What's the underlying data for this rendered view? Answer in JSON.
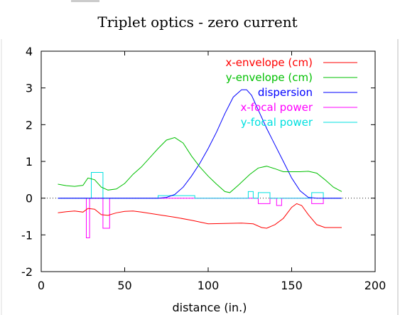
{
  "chart_data": {
    "type": "line",
    "title": "Triplet optics - zero current",
    "xlabel": "distance (in.)",
    "ylabel": "",
    "xlim": [
      0,
      200
    ],
    "ylim": [
      -2,
      4
    ],
    "x_ticks": [
      "0",
      "50",
      "100",
      "150",
      "200"
    ],
    "y_ticks": [
      "-2",
      "-1",
      "0",
      "1",
      "2",
      "3",
      "4"
    ],
    "zero_line": true,
    "legend_position": "top-right",
    "series": [
      {
        "name": "x-envelope (cm)",
        "color": "#ff0000",
        "points": [
          [
            10,
            -0.4
          ],
          [
            15,
            -0.37
          ],
          [
            20,
            -0.35
          ],
          [
            25,
            -0.38
          ],
          [
            28,
            -0.28
          ],
          [
            32,
            -0.3
          ],
          [
            36,
            -0.45
          ],
          [
            40,
            -0.47
          ],
          [
            45,
            -0.4
          ],
          [
            50,
            -0.36
          ],
          [
            55,
            -0.35
          ],
          [
            60,
            -0.38
          ],
          [
            70,
            -0.45
          ],
          [
            80,
            -0.52
          ],
          [
            90,
            -0.6
          ],
          [
            100,
            -0.7
          ],
          [
            110,
            -0.69
          ],
          [
            120,
            -0.68
          ],
          [
            127,
            -0.7
          ],
          [
            132,
            -0.8
          ],
          [
            135,
            -0.82
          ],
          [
            140,
            -0.72
          ],
          [
            145,
            -0.55
          ],
          [
            150,
            -0.25
          ],
          [
            153,
            -0.15
          ],
          [
            156,
            -0.2
          ],
          [
            160,
            -0.45
          ],
          [
            165,
            -0.72
          ],
          [
            170,
            -0.8
          ],
          [
            175,
            -0.8
          ],
          [
            180,
            -0.8
          ]
        ]
      },
      {
        "name": "y-envelope (cm)",
        "color": "#00c000",
        "points": [
          [
            10,
            0.38
          ],
          [
            15,
            0.34
          ],
          [
            20,
            0.32
          ],
          [
            25,
            0.35
          ],
          [
            28,
            0.55
          ],
          [
            32,
            0.5
          ],
          [
            36,
            0.3
          ],
          [
            40,
            0.22
          ],
          [
            45,
            0.25
          ],
          [
            50,
            0.4
          ],
          [
            55,
            0.65
          ],
          [
            60,
            0.85
          ],
          [
            65,
            1.1
          ],
          [
            70,
            1.35
          ],
          [
            75,
            1.58
          ],
          [
            80,
            1.65
          ],
          [
            85,
            1.5
          ],
          [
            90,
            1.15
          ],
          [
            95,
            0.85
          ],
          [
            100,
            0.6
          ],
          [
            105,
            0.38
          ],
          [
            110,
            0.18
          ],
          [
            113,
            0.15
          ],
          [
            118,
            0.35
          ],
          [
            125,
            0.65
          ],
          [
            130,
            0.82
          ],
          [
            135,
            0.87
          ],
          [
            140,
            0.8
          ],
          [
            145,
            0.72
          ],
          [
            150,
            0.72
          ],
          [
            155,
            0.72
          ],
          [
            160,
            0.73
          ],
          [
            165,
            0.68
          ],
          [
            170,
            0.5
          ],
          [
            175,
            0.3
          ],
          [
            180,
            0.18
          ]
        ]
      },
      {
        "name": "dispersion",
        "color": "#0000ff",
        "points": [
          [
            10,
            0
          ],
          [
            70,
            0
          ],
          [
            75,
            0.02
          ],
          [
            80,
            0.1
          ],
          [
            85,
            0.3
          ],
          [
            90,
            0.6
          ],
          [
            95,
            0.95
          ],
          [
            100,
            1.35
          ],
          [
            105,
            1.8
          ],
          [
            110,
            2.3
          ],
          [
            115,
            2.75
          ],
          [
            120,
            2.95
          ],
          [
            123,
            2.95
          ],
          [
            126,
            2.8
          ],
          [
            130,
            2.4
          ],
          [
            135,
            1.9
          ],
          [
            140,
            1.45
          ],
          [
            145,
            1.0
          ],
          [
            150,
            0.55
          ],
          [
            155,
            0.2
          ],
          [
            160,
            0.02
          ],
          [
            165,
            0
          ],
          [
            180,
            0
          ]
        ]
      },
      {
        "name": "x-focal power",
        "color": "#ff00ff",
        "points": [
          [
            10,
            0
          ],
          [
            27,
            0
          ],
          [
            27,
            -1.08
          ],
          [
            29,
            -1.08
          ],
          [
            29,
            0
          ],
          [
            37,
            0
          ],
          [
            37,
            -0.82
          ],
          [
            41,
            -0.82
          ],
          [
            41,
            0
          ],
          [
            130,
            0
          ],
          [
            130,
            -0.15
          ],
          [
            137,
            -0.15
          ],
          [
            137,
            0
          ],
          [
            141,
            0
          ],
          [
            141,
            -0.2
          ],
          [
            144,
            -0.2
          ],
          [
            144,
            0
          ],
          [
            162,
            0
          ],
          [
            162,
            -0.15
          ],
          [
            169,
            -0.15
          ],
          [
            169,
            0
          ],
          [
            180,
            0
          ]
        ]
      },
      {
        "name": "y-focal power",
        "color": "#00e0e0",
        "points": [
          [
            10,
            0
          ],
          [
            30,
            0
          ],
          [
            30,
            0.7
          ],
          [
            37,
            0.7
          ],
          [
            37,
            0
          ],
          [
            70,
            0
          ],
          [
            70,
            0.07
          ],
          [
            92,
            0.07
          ],
          [
            92,
            0
          ],
          [
            124,
            0
          ],
          [
            124,
            0.18
          ],
          [
            127,
            0.18
          ],
          [
            127,
            0
          ],
          [
            130,
            0
          ],
          [
            130,
            0.15
          ],
          [
            137,
            0.15
          ],
          [
            137,
            0
          ],
          [
            162,
            0
          ],
          [
            162,
            0.15
          ],
          [
            169,
            0.15
          ],
          [
            169,
            0
          ],
          [
            180,
            0
          ]
        ]
      }
    ]
  }
}
